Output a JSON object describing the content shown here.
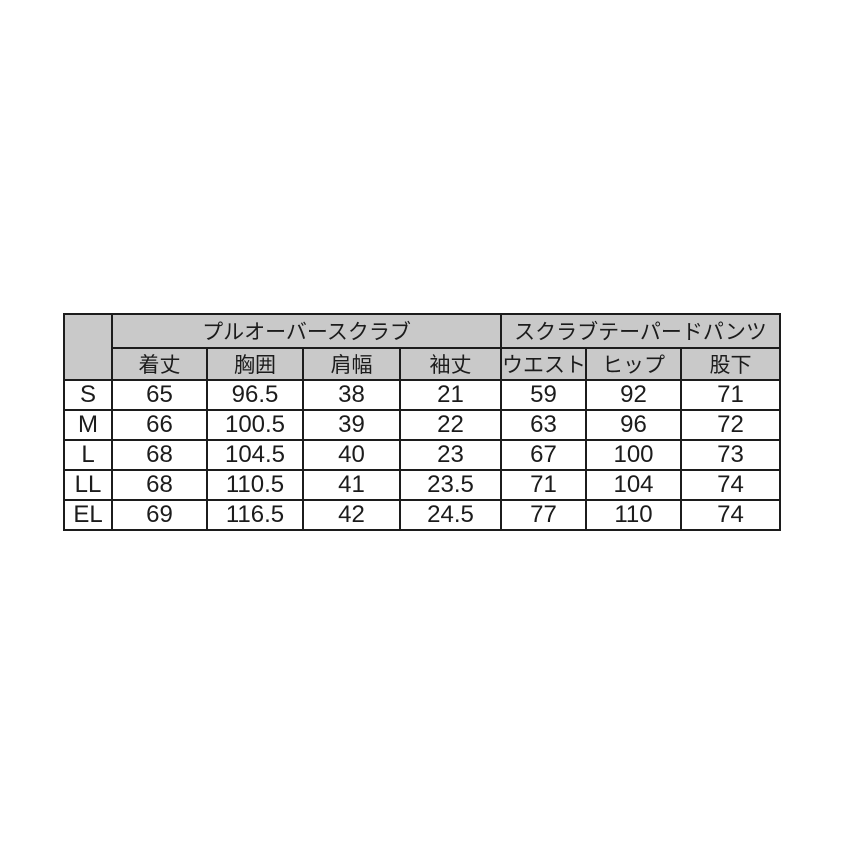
{
  "chart_data": {
    "type": "table",
    "corner_label": "",
    "group_headers": [
      {
        "label": "プルオーバースクラブ",
        "colspan": 4
      },
      {
        "label": "スクラブテーパードパンツ",
        "colspan": 3
      }
    ],
    "column_headers": [
      "着丈",
      "胸囲",
      "肩幅",
      "袖丈",
      "ウエスト",
      "ヒップ",
      "股下"
    ],
    "size_column": [
      "S",
      "M",
      "L",
      "LL",
      "EL"
    ],
    "rows": [
      {
        "size": "S",
        "values": [
          "65",
          "96.5",
          "38",
          "21",
          "59",
          "92",
          "71"
        ]
      },
      {
        "size": "M",
        "values": [
          "66",
          "100.5",
          "39",
          "22",
          "63",
          "96",
          "72"
        ]
      },
      {
        "size": "L",
        "values": [
          "68",
          "104.5",
          "40",
          "23",
          "67",
          "100",
          "73"
        ]
      },
      {
        "size": "LL",
        "values": [
          "68",
          "110.5",
          "41",
          "23.5",
          "71",
          "104",
          "74"
        ]
      },
      {
        "size": "EL",
        "values": [
          "69",
          "116.5",
          "42",
          "24.5",
          "77",
          "110",
          "74"
        ]
      }
    ]
  },
  "colors": {
    "header_background": "#c9c9c9",
    "border": "#1c1c1c",
    "text": "#1c1c1c",
    "page_background": "#ffffff"
  }
}
